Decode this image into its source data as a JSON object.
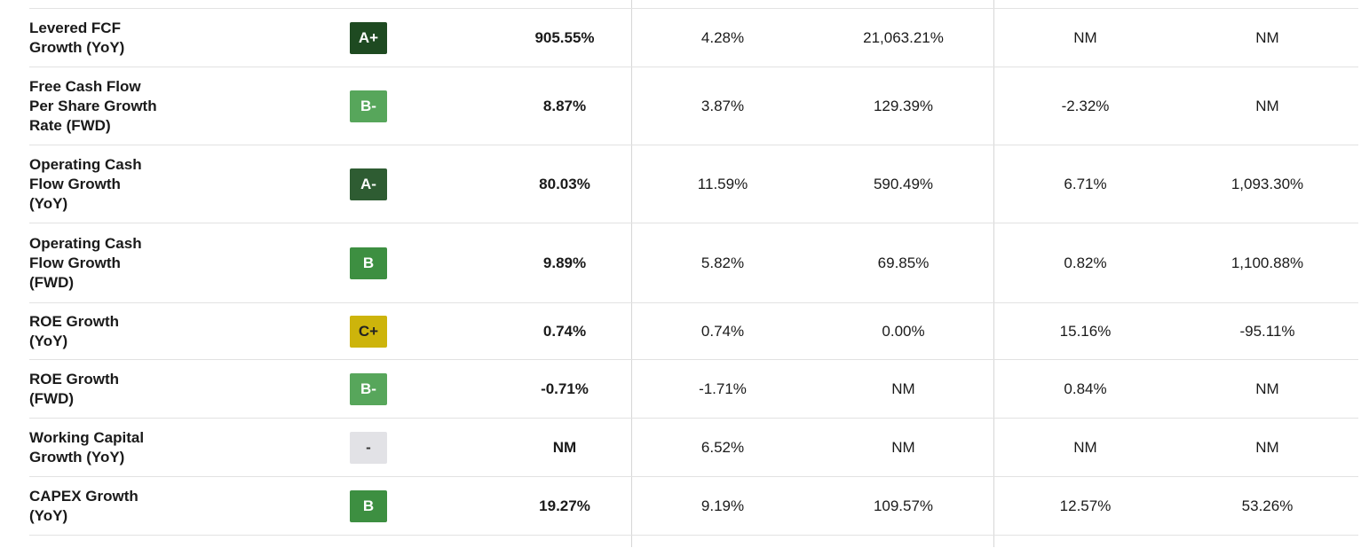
{
  "table": {
    "name": "growth-metrics-grid",
    "grade_colors": {
      "a_plus_bg": "#1E4A21",
      "a_minus_bg": "#2E5C32",
      "b_bg": "#3D8F41",
      "b_minus_bg": "#57A65B",
      "c_plus_bg": "#CDB40B",
      "none_bg": "#E2E2E6",
      "light_fg": "#FFFFFF",
      "dark_fg": "#222222"
    },
    "rows": [
      {
        "label_lines": [
          "Levered FCF",
          "Growth (YoY)"
        ],
        "grade": "A+",
        "grade_bg": "#1E4A21",
        "grade_fg": "#FFFFFF",
        "values": [
          "905.55%",
          "4.28%",
          "21,063.21%",
          "NM",
          "NM"
        ]
      },
      {
        "label_lines": [
          "Free Cash Flow",
          "Per Share Growth",
          "Rate (FWD)"
        ],
        "grade": "B-",
        "grade_bg": "#57A65B",
        "grade_fg": "#FFFFFF",
        "values": [
          "8.87%",
          "3.87%",
          "129.39%",
          "-2.32%",
          "NM"
        ]
      },
      {
        "label_lines": [
          "Operating Cash",
          "Flow Growth",
          "(YoY)"
        ],
        "grade": "A-",
        "grade_bg": "#2E5C32",
        "grade_fg": "#FFFFFF",
        "values": [
          "80.03%",
          "11.59%",
          "590.49%",
          "6.71%",
          "1,093.30%"
        ]
      },
      {
        "label_lines": [
          "Operating Cash",
          "Flow Growth",
          "(FWD)"
        ],
        "grade": "B",
        "grade_bg": "#3D8F41",
        "grade_fg": "#FFFFFF",
        "values": [
          "9.89%",
          "5.82%",
          "69.85%",
          "0.82%",
          "1,100.88%"
        ]
      },
      {
        "label_lines": [
          "ROE Growth",
          "(YoY)"
        ],
        "grade": "C+",
        "grade_bg": "#CDB40B",
        "grade_fg": "#222222",
        "values": [
          "0.74%",
          "0.74%",
          "0.00%",
          "15.16%",
          "-95.11%"
        ]
      },
      {
        "label_lines": [
          "ROE Growth",
          "(FWD)"
        ],
        "grade": "B-",
        "grade_bg": "#57A65B",
        "grade_fg": "#FFFFFF",
        "values": [
          "-0.71%",
          "-1.71%",
          "NM",
          "0.84%",
          "NM"
        ]
      },
      {
        "label_lines": [
          "Working Capital",
          "Growth (YoY)"
        ],
        "grade": "-",
        "grade_bg": "#E2E2E6",
        "grade_fg": "#3A3A3A",
        "values": [
          "NM",
          "6.52%",
          "NM",
          "NM",
          "NM"
        ]
      },
      {
        "label_lines": [
          "CAPEX Growth",
          "(YoY)"
        ],
        "grade": "B",
        "grade_bg": "#3D8F41",
        "grade_fg": "#FFFFFF",
        "values": [
          "19.27%",
          "9.19%",
          "109.57%",
          "12.57%",
          "53.26%"
        ]
      }
    ]
  }
}
